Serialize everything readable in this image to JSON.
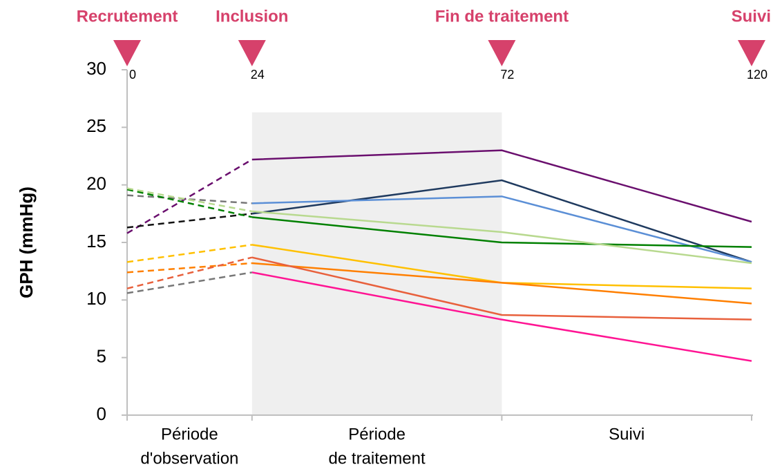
{
  "chart_data": {
    "type": "line",
    "y_label": "GPH (mmHg)",
    "x": [
      0,
      24,
      72,
      120
    ],
    "xlim": [
      0,
      120
    ],
    "xticks": [
      0,
      24,
      72,
      120
    ],
    "ylim": [
      0,
      30
    ],
    "yticks": [
      0,
      5,
      10,
      15,
      20,
      25,
      30
    ],
    "milestones": [
      {
        "x": 0,
        "label": "Recrutement"
      },
      {
        "x": 24,
        "label": "Inclusion"
      },
      {
        "x": 72,
        "label": "Fin de traitement"
      },
      {
        "x": 120,
        "label": "Suivi"
      }
    ],
    "milestone_color": "#d6416b",
    "periods": [
      {
        "from": 0,
        "to": 24,
        "lines": [
          "Période",
          "d'observation"
        ]
      },
      {
        "from": 24,
        "to": 72,
        "lines": [
          "Période",
          "de traitement"
        ]
      },
      {
        "from": 72,
        "to": 120,
        "lines": [
          "Suivi"
        ]
      }
    ],
    "shade": {
      "from": 24,
      "to": 72,
      "top": 26.3,
      "color": "#efefef"
    },
    "series": [
      {
        "color": "#6a0f6e",
        "dash_color": "#6a0f6e",
        "values": [
          15.8,
          22.2,
          23.0,
          16.8
        ]
      },
      {
        "color": "#1f3a5f",
        "dash_color": "#111111",
        "values": [
          16.3,
          17.5,
          20.4,
          13.3
        ]
      },
      {
        "color": "#5b8fd6",
        "dash_color": "#777777",
        "values": [
          19.1,
          18.4,
          19.0,
          13.3
        ]
      },
      {
        "color": "#008000",
        "dash_color": "#008000",
        "values": [
          19.6,
          17.2,
          15.0,
          14.6
        ]
      },
      {
        "color": "#b8d98f",
        "dash_color": "#b8d98f",
        "values": [
          19.7,
          17.7,
          15.9,
          13.2
        ]
      },
      {
        "color": "#ffc000",
        "dash_color": "#ffc000",
        "values": [
          13.3,
          14.8,
          11.5,
          11.0
        ]
      },
      {
        "color": "#ff7f00",
        "dash_color": "#ff7f00",
        "values": [
          12.4,
          13.2,
          11.5,
          9.7
        ]
      },
      {
        "color": "#e8603c",
        "dash_color": "#e8603c",
        "values": [
          11.0,
          13.7,
          8.7,
          8.3
        ]
      },
      {
        "color": "#ff1493",
        "dash_color": "#777777",
        "values": [
          10.6,
          12.4,
          8.3,
          4.7
        ]
      }
    ]
  }
}
